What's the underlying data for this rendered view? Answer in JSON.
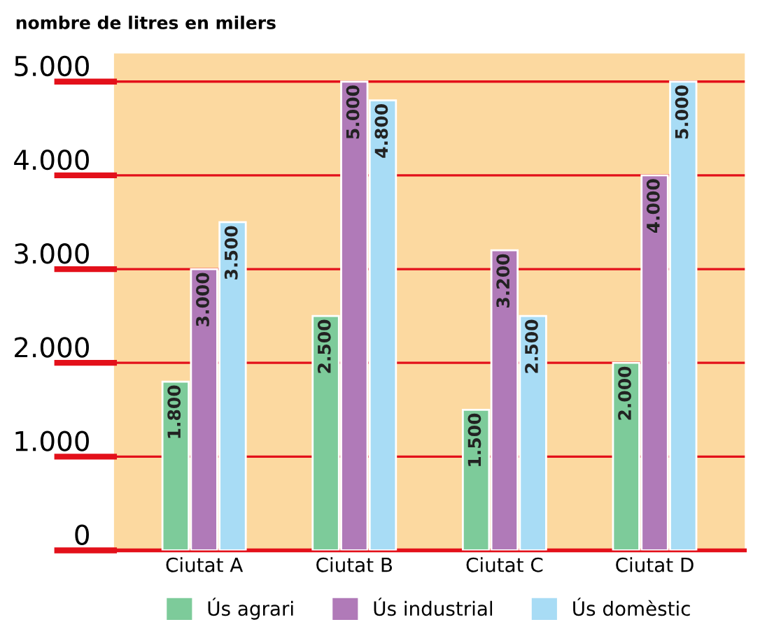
{
  "chart_data": {
    "type": "bar",
    "ylabel": "nombre de litres en milers",
    "categories": [
      "Ciutat A",
      "Ciutat B",
      "Ciutat C",
      "Ciutat D"
    ],
    "series": [
      {
        "name": "Ús agrari",
        "color": "#7dcb9a",
        "values": [
          1800,
          2500,
          1500,
          2000
        ],
        "value_labels": [
          "1.800",
          "2.500",
          "1.500",
          "2.000"
        ]
      },
      {
        "name": "Ús industrial",
        "color": "#b07ab8",
        "values": [
          3000,
          5000,
          3200,
          4000
        ],
        "value_labels": [
          "3.000",
          "5.000",
          "3.200",
          "4.000"
        ]
      },
      {
        "name": "Ús domèstic",
        "color": "#a8dcf5",
        "values": [
          3500,
          4800,
          2500,
          5000
        ],
        "value_labels": [
          "3.500",
          "4.800",
          "2.500",
          "5.000"
        ]
      }
    ],
    "ylim": [
      0,
      5300
    ],
    "yticks": [
      {
        "value": 0,
        "label": "0"
      },
      {
        "value": 1000,
        "label": "1.000"
      },
      {
        "value": 2000,
        "label": "2.000"
      },
      {
        "value": 3000,
        "label": "3.000"
      },
      {
        "value": 4000,
        "label": "4.000"
      },
      {
        "value": 5000,
        "label": "5.000"
      }
    ],
    "grid": "y",
    "legend": "bottom"
  }
}
